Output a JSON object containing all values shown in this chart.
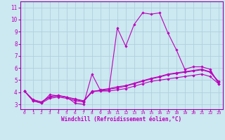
{
  "xlabel": "Windchill (Refroidissement éolien,°C)",
  "x_ticks": [
    0,
    1,
    2,
    3,
    4,
    5,
    6,
    7,
    8,
    9,
    10,
    11,
    12,
    13,
    14,
    15,
    16,
    17,
    18,
    19,
    20,
    21,
    22,
    23
  ],
  "y_ticks": [
    3,
    4,
    5,
    6,
    7,
    8,
    9,
    10,
    11
  ],
  "ylim": [
    2.6,
    11.5
  ],
  "xlim": [
    -0.5,
    23.5
  ],
  "bg_color": "#cce8f0",
  "line_color": "#bb00bb",
  "grid_color": "#aaccdd",
  "spine_color": "#9900aa",
  "line1_x": [
    0,
    1,
    2,
    3,
    4,
    5,
    6,
    7,
    8,
    9,
    10,
    11,
    12,
    13,
    14,
    15,
    16,
    17,
    18,
    19,
    20,
    21,
    22,
    23
  ],
  "line1_y": [
    4.1,
    3.3,
    3.1,
    3.8,
    3.7,
    3.6,
    3.1,
    3.0,
    5.5,
    4.15,
    4.15,
    9.3,
    7.8,
    9.6,
    10.55,
    10.45,
    10.55,
    8.9,
    7.5,
    5.9,
    6.1,
    6.1,
    5.9,
    4.7
  ],
  "line2_x": [
    0,
    1,
    2,
    3,
    4,
    5,
    6,
    7,
    8,
    9,
    10,
    11,
    12,
    13,
    14,
    15,
    16,
    17,
    18,
    19,
    20,
    21,
    22,
    23
  ],
  "line2_y": [
    4.1,
    3.3,
    3.1,
    3.5,
    3.6,
    3.5,
    3.3,
    3.2,
    4.1,
    4.1,
    4.1,
    4.2,
    4.3,
    4.5,
    4.7,
    4.9,
    5.0,
    5.1,
    5.2,
    5.3,
    5.4,
    5.5,
    5.3,
    4.7
  ],
  "line3_x": [
    0,
    1,
    2,
    3,
    4,
    5,
    6,
    7,
    8,
    9,
    10,
    11,
    12,
    13,
    14,
    15,
    16,
    17,
    18,
    19,
    20,
    21,
    22,
    23
  ],
  "line3_y": [
    4.1,
    3.35,
    3.2,
    3.6,
    3.7,
    3.6,
    3.4,
    3.25,
    4.0,
    4.2,
    4.3,
    4.45,
    4.55,
    4.75,
    4.95,
    5.15,
    5.3,
    5.5,
    5.6,
    5.7,
    5.8,
    5.9,
    5.7,
    4.9
  ],
  "line4_x": [
    0,
    1,
    2,
    3,
    4,
    5,
    6,
    7,
    8,
    9,
    10,
    11,
    12,
    13,
    14,
    15,
    16,
    17,
    18,
    19,
    20,
    21,
    22,
    23
  ],
  "line4_y": [
    4.1,
    3.4,
    3.2,
    3.65,
    3.75,
    3.6,
    3.45,
    3.3,
    4.05,
    4.15,
    4.25,
    4.35,
    4.5,
    4.7,
    4.9,
    5.1,
    5.25,
    5.45,
    5.55,
    5.65,
    5.75,
    5.85,
    5.65,
    4.85
  ]
}
